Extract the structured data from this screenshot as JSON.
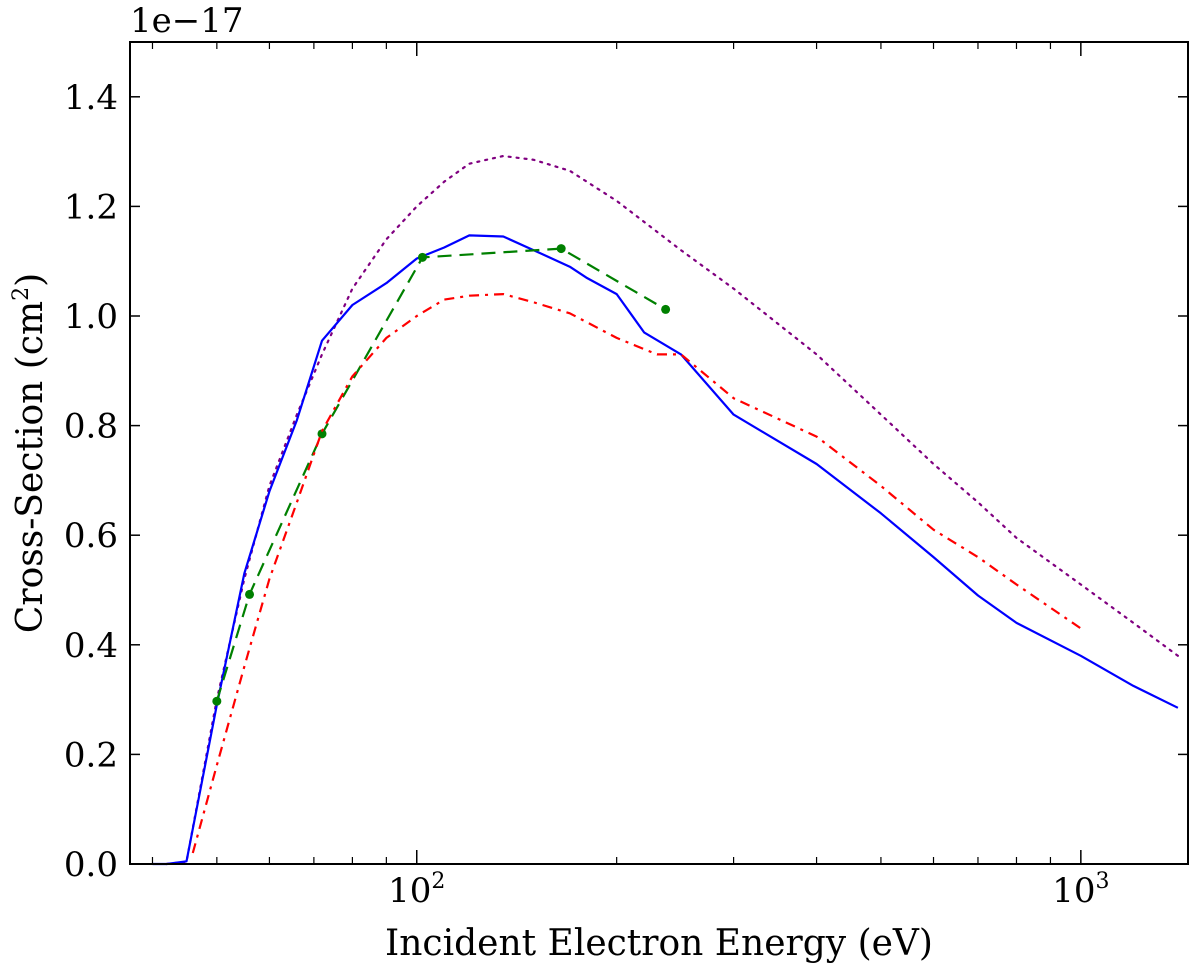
{
  "chart_data": {
    "type": "line",
    "xscale": "log",
    "xlim": [
      37,
      1450
    ],
    "ylim": [
      0,
      1.5
    ],
    "yscale_factor": "1e−17",
    "xlabel": "Incident Electron Energy (eV)",
    "ylabel_main": "Cross-Section (cm",
    "ylabel_sup": "2",
    "ylabel_end": ")",
    "yticks": [
      0.0,
      0.2,
      0.4,
      0.6,
      0.8,
      1.0,
      1.2,
      1.4
    ],
    "ytick_labels": [
      "0.0",
      "0.2",
      "0.4",
      "0.6",
      "0.8",
      "1.0",
      "1.2",
      "1.4"
    ],
    "xticks": [
      100,
      1000
    ],
    "xtick_base": [
      "10",
      "10"
    ],
    "xtick_exp": [
      "2",
      "3"
    ],
    "series": [
      {
        "name": "dotted",
        "color": "#800080",
        "style": "dotted",
        "x": [
          42,
          45,
          50,
          55,
          60,
          66,
          72,
          80,
          90,
          100,
          110,
          120,
          135,
          150,
          170,
          200,
          250,
          300,
          400,
          500,
          600,
          700,
          800,
          1000,
          1200,
          1400
        ],
        "y": [
          0.0,
          0.004,
          0.3,
          0.52,
          0.69,
          0.82,
          0.93,
          1.05,
          1.14,
          1.2,
          1.245,
          1.278,
          1.292,
          1.285,
          1.265,
          1.21,
          1.12,
          1.05,
          0.93,
          0.82,
          0.73,
          0.66,
          0.595,
          0.51,
          0.44,
          0.38
        ]
      },
      {
        "name": "solid",
        "color": "#0000ff",
        "style": "solid",
        "x": [
          40,
          42,
          45,
          50,
          55,
          60,
          66,
          72,
          80,
          90,
          100,
          110,
          120,
          135,
          150,
          170,
          180,
          200,
          220,
          250,
          300,
          400,
          500,
          600,
          700,
          800,
          1000,
          1200,
          1400
        ],
        "y": [
          0.0,
          0.0,
          0.005,
          0.29,
          0.53,
          0.68,
          0.81,
          0.955,
          1.02,
          1.06,
          1.105,
          1.125,
          1.147,
          1.145,
          1.12,
          1.09,
          1.07,
          1.04,
          0.97,
          0.93,
          0.82,
          0.73,
          0.64,
          0.56,
          0.49,
          0.44,
          0.38,
          0.325,
          0.285
        ]
      },
      {
        "name": "dashed-markers",
        "color": "#008000",
        "style": "dashed",
        "markers": true,
        "x": [
          50,
          56,
          72,
          102,
          165,
          237
        ],
        "y": [
          0.297,
          0.492,
          0.785,
          1.107,
          1.123,
          1.012
        ]
      },
      {
        "name": "dash-dot",
        "color": "#ff0000",
        "style": "dashdot",
        "x": [
          46,
          50,
          55,
          60,
          66,
          72,
          80,
          90,
          100,
          110,
          120,
          135,
          150,
          170,
          200,
          230,
          250,
          300,
          400,
          500,
          600,
          700,
          800,
          1000
        ],
        "y": [
          0.02,
          0.18,
          0.36,
          0.52,
          0.66,
          0.79,
          0.89,
          0.96,
          1.0,
          1.03,
          1.037,
          1.04,
          1.025,
          1.005,
          0.96,
          0.93,
          0.93,
          0.85,
          0.78,
          0.69,
          0.61,
          0.56,
          0.51,
          0.43
        ]
      }
    ]
  }
}
